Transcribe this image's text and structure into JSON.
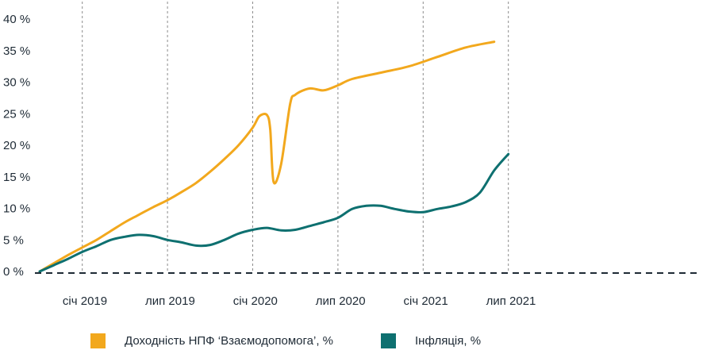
{
  "chart_data": {
    "type": "line",
    "title": "",
    "xlabel": "",
    "ylabel": "",
    "x_ticks": [
      "січ 2019",
      "лип 2019",
      "січ 2020",
      "лип 2020",
      "січ 2021",
      "лип 2021"
    ],
    "x_range": [
      "2019-01",
      "2021-09"
    ],
    "ylim": [
      0,
      40
    ],
    "y_ticks": [
      "0 %",
      "5 %",
      "10 %",
      "15 %",
      "20 %",
      "25 %",
      "30 %",
      "35 %",
      "40 %"
    ],
    "grid": "vertical dashed",
    "legend_position": "bottom",
    "series": [
      {
        "name": "Доходність НПФ ‘Взаємодопомога’, %",
        "color": "#f2a81d",
        "points": [
          [
            "2019-01",
            0.0
          ],
          [
            "2019-02",
            1.3
          ],
          [
            "2019-03",
            2.6
          ],
          [
            "2019-04",
            3.8
          ],
          [
            "2019-05",
            5.0
          ],
          [
            "2019-06",
            6.4
          ],
          [
            "2019-07",
            7.8
          ],
          [
            "2019-08",
            9.0
          ],
          [
            "2019-09",
            10.2
          ],
          [
            "2019-10",
            11.3
          ],
          [
            "2019-11",
            12.6
          ],
          [
            "2019-12",
            14.0
          ],
          [
            "2020-01",
            15.8
          ],
          [
            "2020-02",
            17.8
          ],
          [
            "2020-03",
            20.0
          ],
          [
            "2020-04",
            22.8
          ],
          [
            "2020-04-15",
            24.6
          ],
          [
            "2020-05",
            24.8
          ],
          [
            "2020-05-08",
            22.5
          ],
          [
            "2020-05-15",
            14.2
          ],
          [
            "2020-06-01",
            17.0
          ],
          [
            "2020-06-20",
            26.5
          ],
          [
            "2020-07",
            28.0
          ],
          [
            "2020-08",
            29.0
          ],
          [
            "2020-09",
            28.7
          ],
          [
            "2020-10",
            29.5
          ],
          [
            "2020-11",
            30.5
          ],
          [
            "2021-01",
            31.5
          ],
          [
            "2021-03",
            32.5
          ],
          [
            "2021-05",
            34.0
          ],
          [
            "2021-07",
            35.5
          ],
          [
            "2021-09",
            36.4
          ]
        ]
      },
      {
        "name": "Інфляція, %",
        "color": "#0e7070",
        "points": [
          [
            "2019-01",
            0.0
          ],
          [
            "2019-02",
            1.0
          ],
          [
            "2019-03",
            2.0
          ],
          [
            "2019-04",
            3.1
          ],
          [
            "2019-05",
            4.0
          ],
          [
            "2019-06",
            5.0
          ],
          [
            "2019-07",
            5.5
          ],
          [
            "2019-08",
            5.8
          ],
          [
            "2019-09",
            5.6
          ],
          [
            "2019-10",
            5.0
          ],
          [
            "2019-11",
            4.6
          ],
          [
            "2019-12",
            4.1
          ],
          [
            "2020-01",
            4.2
          ],
          [
            "2020-02",
            5.0
          ],
          [
            "2020-03",
            6.0
          ],
          [
            "2020-04",
            6.6
          ],
          [
            "2020-05",
            6.9
          ],
          [
            "2020-06",
            6.5
          ],
          [
            "2020-07",
            6.6
          ],
          [
            "2020-08",
            7.2
          ],
          [
            "2020-09",
            7.8
          ],
          [
            "2020-10",
            8.5
          ],
          [
            "2020-11",
            9.9
          ],
          [
            "2020-12",
            10.4
          ],
          [
            "2021-01",
            10.4
          ],
          [
            "2021-02",
            9.9
          ],
          [
            "2021-03",
            9.5
          ],
          [
            "2021-04",
            9.4
          ],
          [
            "2021-05",
            9.9
          ],
          [
            "2021-06",
            10.3
          ],
          [
            "2021-07",
            11.0
          ],
          [
            "2021-08",
            12.5
          ],
          [
            "2021-09",
            16.0
          ],
          [
            "2021-10",
            18.6
          ]
        ]
      }
    ]
  }
}
